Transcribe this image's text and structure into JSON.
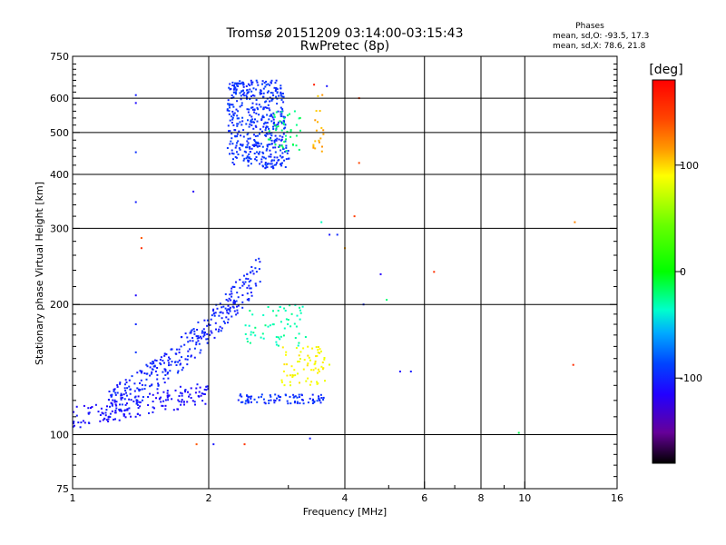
{
  "chart_data": {
    "type": "scatter",
    "title": "Tromsø 20151209 03:14:00-03:15:43",
    "subtitle": "RwPretec (8p)",
    "xlabel": "Frequency [MHz]",
    "ylabel": "Stationary phase Virtual Height [km]",
    "x_scale": "log",
    "y_scale": "log",
    "xlim": [
      1,
      16
    ],
    "ylim": [
      75,
      750
    ],
    "x_ticks": [
      1,
      2,
      4,
      6,
      8,
      10,
      16
    ],
    "x_tick_labels": [
      "1",
      "2",
      "4",
      "6",
      "8",
      "10",
      "16"
    ],
    "x_minor_ticks": [
      3,
      5,
      7,
      9
    ],
    "y_ticks": [
      75,
      100,
      200,
      300,
      400,
      500,
      600,
      750
    ],
    "y_tick_labels": [
      "75",
      "100",
      "200",
      "300",
      "400",
      "500",
      "600",
      "750"
    ],
    "y_minor_ticks": [
      80,
      85,
      90,
      95,
      110,
      120,
      130,
      140,
      150,
      160,
      170,
      180,
      190,
      220,
      240,
      260,
      280,
      320,
      340,
      360,
      380,
      420,
      440,
      460,
      480,
      520,
      540,
      560,
      580,
      620,
      640,
      660,
      680,
      700,
      720
    ],
    "grid": true,
    "stats_header": "Phases",
    "stats": [
      "mean, sd,O: -93.5, 17.3",
      "mean, sd,X: 78.6, 21.8"
    ],
    "colorbar": {
      "unit": "[deg]",
      "range": [
        -180,
        180
      ],
      "ticks": [
        100,
        0,
        -100
      ],
      "tick_labels": [
        "100",
        "0",
        "-100"
      ]
    },
    "clusters": [
      {
        "component": "E-layer O trace",
        "x_range": [
          1.0,
          2.0
        ],
        "y_range": [
          100,
          125
        ],
        "phase_deg": -110,
        "point_count": 160
      },
      {
        "component": "F-layer O trace",
        "x_range": [
          1.2,
          2.6
        ],
        "y_range": [
          120,
          240
        ],
        "phase_deg": -100,
        "point_count": 340
      },
      {
        "component": "F-layer X trace",
        "x_range": [
          2.3,
          3.6
        ],
        "y_range": [
          118,
          124
        ],
        "phase_deg": -95,
        "point_count": 90
      },
      {
        "component": "Spread F returns",
        "x_range": [
          2.4,
          3.3
        ],
        "y_range": [
          160,
          200
        ],
        "phase_deg": -30,
        "point_count": 60
      },
      {
        "component": "Spread F returns",
        "x_range": [
          2.9,
          3.7
        ],
        "y_range": [
          130,
          160
        ],
        "phase_deg": 90,
        "point_count": 70
      },
      {
        "component": "Upper echo cluster",
        "x_range": [
          2.2,
          3.2
        ],
        "y_range": [
          380,
          660
        ],
        "phase_deg": -95,
        "point_count": 470
      },
      {
        "component": "Upper echo cluster",
        "x_range": [
          2.7,
          3.2
        ],
        "y_range": [
          450,
          560
        ],
        "phase_deg": -20,
        "point_count": 40
      },
      {
        "component": "Scattered high-phase echoes",
        "x_range": [
          3.4,
          3.6
        ],
        "y_range": [
          450,
          620
        ],
        "phase_deg": 110,
        "point_count": 20
      }
    ],
    "points": [
      {
        "x": 1.38,
        "y": 610,
        "phase": -100
      },
      {
        "x": 1.38,
        "y": 585,
        "phase": -110
      },
      {
        "x": 1.38,
        "y": 450,
        "phase": -100
      },
      {
        "x": 1.38,
        "y": 345,
        "phase": -100
      },
      {
        "x": 1.42,
        "y": 285,
        "phase": 140
      },
      {
        "x": 1.42,
        "y": 270,
        "phase": 160
      },
      {
        "x": 1.38,
        "y": 210,
        "phase": -110
      },
      {
        "x": 1.38,
        "y": 180,
        "phase": -100
      },
      {
        "x": 1.38,
        "y": 155,
        "phase": -100
      },
      {
        "x": 1.85,
        "y": 365,
        "phase": -120
      },
      {
        "x": 1.88,
        "y": 95,
        "phase": 140
      },
      {
        "x": 2.05,
        "y": 95,
        "phase": -110
      },
      {
        "x": 2.4,
        "y": 95,
        "phase": 150
      },
      {
        "x": 3.35,
        "y": 98,
        "phase": -110
      },
      {
        "x": 3.55,
        "y": 310,
        "phase": -30
      },
      {
        "x": 3.7,
        "y": 290,
        "phase": -100
      },
      {
        "x": 3.85,
        "y": 290,
        "phase": -100
      },
      {
        "x": 4.0,
        "y": 270,
        "phase": 120
      },
      {
        "x": 4.2,
        "y": 320,
        "phase": 140
      },
      {
        "x": 4.3,
        "y": 600,
        "phase": 150
      },
      {
        "x": 4.3,
        "y": 425,
        "phase": 150
      },
      {
        "x": 4.4,
        "y": 200,
        "phase": -100
      },
      {
        "x": 4.8,
        "y": 235,
        "phase": -110
      },
      {
        "x": 4.95,
        "y": 205,
        "phase": -20
      },
      {
        "x": 5.3,
        "y": 140,
        "phase": -110
      },
      {
        "x": 5.6,
        "y": 140,
        "phase": -110
      },
      {
        "x": 6.3,
        "y": 238,
        "phase": 160
      },
      {
        "x": 9.7,
        "y": 101,
        "phase": -10
      },
      {
        "x": 12.8,
        "y": 145,
        "phase": 160
      },
      {
        "x": 12.9,
        "y": 310,
        "phase": 120
      },
      {
        "x": 3.65,
        "y": 640,
        "phase": -100
      },
      {
        "x": 3.42,
        "y": 645,
        "phase": 160
      }
    ]
  }
}
